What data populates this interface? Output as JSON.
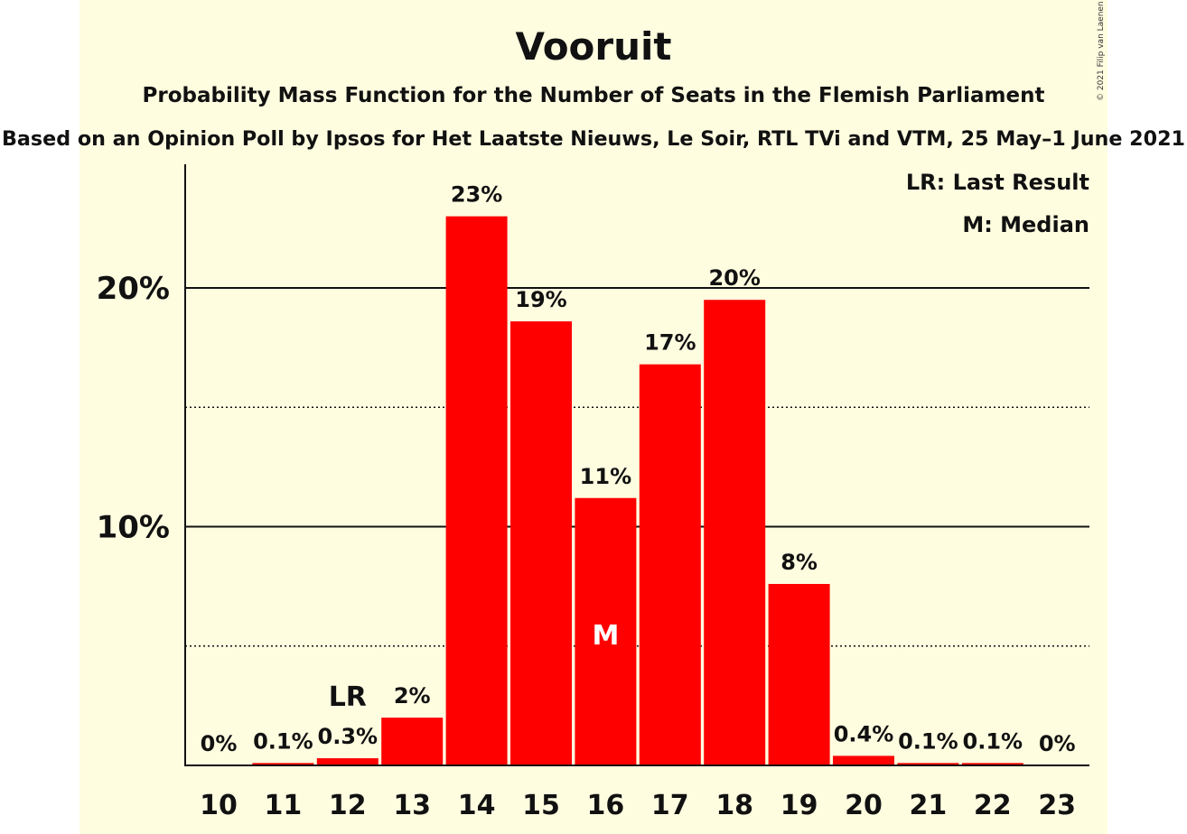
{
  "chart_data": {
    "type": "bar",
    "title": "Vooruit",
    "subtitle": "Probability Mass Function for the Number of Seats in the Flemish Parliament",
    "subtitle2": "Based on an Opinion Poll by Ipsos for Het Laatste Nieuws, Le Soir, RTL TVi and VTM, 25 May–1 June 2021",
    "categories": [
      "10",
      "11",
      "12",
      "13",
      "14",
      "15",
      "16",
      "17",
      "18",
      "19",
      "20",
      "21",
      "22",
      "23"
    ],
    "values": [
      0,
      0.1,
      0.3,
      2.0,
      23.0,
      18.6,
      11.2,
      16.8,
      19.5,
      7.6,
      0.4,
      0.1,
      0.1,
      0
    ],
    "data_labels": [
      "0%",
      "0.1%",
      "0.3%",
      "2%",
      "23%",
      "19%",
      "11%",
      "17%",
      "20%",
      "8%",
      "0.4%",
      "0.1%",
      "0.1%",
      "0%"
    ],
    "ylim": [
      0,
      25
    ],
    "yticks": [
      {
        "value": 10,
        "label": "10%"
      },
      {
        "value": 20,
        "label": "20%"
      }
    ],
    "minor_gridlines": [
      5,
      15
    ],
    "last_result_index": 2,
    "median_index": 6,
    "last_result_marker": "LR",
    "median_marker": "M",
    "legend": [
      "LR: Last Result",
      "M: Median"
    ],
    "legend_position": "top-right",
    "bar_color": "#ff0000",
    "background_color": "#fffde0",
    "copyright": "© 2021 Filip van Laenen"
  }
}
